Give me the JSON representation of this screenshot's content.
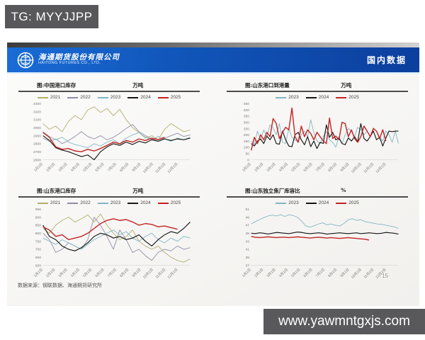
{
  "watermarks": {
    "telegram_tag": "TG: MYYJJPP",
    "site_url": "www.yawmntgxjs.com"
  },
  "header": {
    "company_cn": "海通期货股份有限公司",
    "company_en": "HAITONG FUTURES CO., LTD.",
    "section_label": "国内数据"
  },
  "footer": {
    "source": "数据来源：钢联数据、海通期货研究所",
    "page_number": "15"
  },
  "colors": {
    "y2021": "#b3ae6b",
    "y2022": "#8d8da6",
    "y2023": "#7fb6c2",
    "y2024": "#161616",
    "y2025": "#c32423",
    "header_blue": "#1156ba",
    "watermark_gray": "#59595b"
  },
  "chart_data": [
    {
      "type": "line",
      "title": "图:中国港口库存",
      "unit": "万吨",
      "ylim": [
        2600,
        3300
      ],
      "ytick_step": 100,
      "legend_position": "top",
      "grid": false,
      "x_labels": [
        "1月1日",
        "2月1日",
        "3月1日",
        "4月1日",
        "5月1日",
        "6月1日",
        "7月1日",
        "8月1日",
        "9月1日",
        "10月1日",
        "11月1日",
        "12月1日"
      ],
      "series": [
        {
          "name": "2021",
          "color": "#b3ae6b",
          "values": [
            3050,
            2980,
            3020,
            2950,
            3080,
            3150,
            3100,
            3220,
            3260,
            3190,
            3240,
            3150,
            3230,
            3100,
            3000,
            2940,
            2870,
            2900,
            2850,
            2980,
            3050,
            3000,
            2950,
            2970
          ]
        },
        {
          "name": "2022",
          "color": "#8d8da6",
          "values": [
            2870,
            2830,
            2860,
            2800,
            2840,
            2890,
            2950,
            2890,
            2860,
            2900,
            2850,
            2880,
            2930,
            2990,
            3040,
            2950,
            2900,
            2860,
            2830,
            2870,
            2900,
            2930,
            2890,
            2910
          ]
        },
        {
          "name": "2023",
          "color": "#7fb6c2",
          "values": [
            2950,
            2890,
            2850,
            2880,
            2820,
            2790,
            2770,
            2750,
            2800,
            2770,
            2820,
            2850,
            2800,
            2870,
            2910,
            2940,
            2880,
            2850,
            2890,
            2860,
            2830,
            2870,
            2850,
            2880
          ]
        },
        {
          "name": "2024",
          "color": "#161616",
          "values": [
            2900,
            2840,
            2750,
            2720,
            2700,
            2670,
            2640,
            2660,
            2600,
            2700,
            2760,
            2800,
            2780,
            2820,
            2790,
            2830,
            2810,
            2850,
            2830,
            2860,
            2840,
            2860,
            2850,
            2870
          ]
        },
        {
          "name": "2025",
          "color": "#c32423",
          "values": [
            2940,
            2880,
            2760,
            2730,
            2740,
            2710,
            2700,
            2730,
            2710,
            2740,
            2780,
            2820,
            2800,
            2840,
            2820,
            2860,
            2840,
            2870,
            2850,
            2880
          ]
        }
      ]
    },
    {
      "type": "line",
      "title": "图:山东港口到港量",
      "unit": "万吨",
      "ylim": [
        0,
        450
      ],
      "ytick_step": 50,
      "legend_position": "top",
      "grid": false,
      "x_labels": [
        "1月1日",
        "2月1日",
        "3月1日",
        "4月1日",
        "5月1日",
        "6月1日",
        "7月1日",
        "8月1日",
        "9月1日",
        "10月1日",
        "11月1日",
        "12月1日"
      ],
      "series": [
        {
          "name": "2023",
          "color": "#7fb6c2",
          "values": [
            150,
            120,
            230,
            160,
            240,
            185,
            280,
            255,
            200,
            290,
            140,
            130,
            250,
            180,
            160,
            140,
            200,
            230,
            185,
            320,
            220,
            150,
            130,
            185,
            230,
            160,
            140,
            100,
            185,
            130,
            200,
            250,
            230,
            185,
            260,
            240,
            200,
            230,
            185,
            255,
            230,
            180,
            150,
            230,
            200,
            140,
            230,
            130
          ]
        },
        {
          "name": "2024",
          "color": "#161616",
          "values": [
            130,
            110,
            150,
            165,
            130,
            190,
            160,
            200,
            130,
            125,
            230,
            160,
            110,
            105,
            200,
            220,
            160,
            120,
            185,
            105,
            150,
            90,
            140,
            130,
            280,
            180,
            220,
            160,
            175,
            130,
            120,
            175,
            150,
            185,
            145,
            290,
            170,
            150,
            185,
            230,
            160,
            180,
            110,
            175,
            230,
            225,
            230,
            230
          ]
        },
        {
          "name": "2025",
          "color": "#c32423",
          "values": [
            75,
            180,
            130,
            200,
            160,
            220,
            185,
            330,
            290,
            170,
            220,
            260,
            240,
            415,
            185,
            140,
            270,
            185,
            240,
            210,
            160,
            220,
            185,
            150,
            130,
            335,
            170,
            190,
            160,
            300,
            290,
            185,
            240,
            170,
            140,
            185,
            270,
            230,
            185,
            250,
            230,
            170,
            240,
            150
          ]
        }
      ]
    },
    {
      "type": "line",
      "title": "图:山东港口库存",
      "unit": "万吨",
      "ylim": [
        600,
        950
      ],
      "ytick_step": 50,
      "legend_position": "top",
      "grid": false,
      "x_labels": [
        "1月1日",
        "2月1日",
        "3月1日",
        "4月1日",
        "5月1日",
        "6月1日",
        "7月1日",
        "8月1日",
        "9月1日",
        "10月1日",
        "11月1日",
        "12月1日"
      ],
      "series": [
        {
          "name": "2021",
          "color": "#b3ae6b",
          "values": [
            830,
            800,
            850,
            880,
            900,
            870,
            890,
            915,
            870,
            920,
            850,
            800,
            760,
            780,
            820,
            750,
            720,
            700,
            720,
            680,
            650,
            630,
            620,
            640
          ]
        },
        {
          "name": "2022",
          "color": "#8d8da6",
          "values": [
            800,
            760,
            680,
            700,
            740,
            720,
            700,
            760,
            900,
            850,
            780,
            700,
            820,
            760,
            680,
            700,
            660,
            630,
            680,
            700,
            690,
            720,
            700,
            710
          ]
        },
        {
          "name": "2023",
          "color": "#7fb6c2",
          "values": [
            770,
            750,
            730,
            760,
            740,
            720,
            700,
            730,
            760,
            780,
            800,
            820,
            790,
            810,
            770,
            750,
            780,
            800,
            760,
            740,
            770,
            750,
            780,
            770
          ]
        },
        {
          "name": "2024",
          "color": "#161616",
          "values": [
            850,
            780,
            760,
            720,
            700,
            690,
            710,
            740,
            780,
            800,
            790,
            770,
            780,
            760,
            770,
            790,
            750,
            720,
            760,
            790,
            810,
            800,
            830,
            870
          ]
        },
        {
          "name": "2025",
          "color": "#c32423",
          "values": [
            840,
            820,
            780,
            790,
            760,
            770,
            780,
            800,
            830,
            860,
            880,
            890,
            880,
            885,
            870,
            850,
            860,
            855,
            840,
            845,
            835,
            825
          ]
        }
      ]
    },
    {
      "type": "line",
      "title": "图:山东独立焦厂库容比",
      "unit": "%",
      "ylim": [
        37,
        51
      ],
      "ytick_step": 2,
      "legend_position": "top",
      "grid": false,
      "x_labels": [
        "1月1日",
        "2月1日",
        "3月1日",
        "4月1日",
        "5月1日",
        "6月1日",
        "7月1日",
        "8月1日",
        "9月1日",
        "10月1日",
        "11月1日",
        "12月1日"
      ],
      "series": [
        {
          "name": "2023",
          "color": "#7fb6c2",
          "values": [
            47.3,
            47.9,
            48.4,
            48.9,
            49.3,
            49.5,
            49.3,
            49.6,
            49.2,
            49.6,
            49.4,
            49.0,
            48.0,
            46.8,
            46.5,
            46.9,
            47.3,
            47.6,
            47.1,
            47.3,
            47.0,
            46.8,
            47.4,
            48.3,
            48.6,
            48.2,
            48.4,
            47.9,
            47.7,
            47.5,
            47.3,
            47.2,
            47.0,
            46.8,
            46.6,
            46.2
          ]
        },
        {
          "name": "2024",
          "color": "#161616",
          "values": [
            45.0,
            44.9,
            45.1,
            45.0,
            44.8,
            45.0,
            45.2,
            45.1,
            45.0,
            44.9,
            45.1,
            45.3,
            45.2,
            45.0,
            44.9,
            45.0,
            45.1,
            45.0,
            44.8,
            44.9,
            45.0,
            45.1,
            45.0,
            44.9,
            45.0,
            45.1,
            44.9,
            45.0,
            45.1,
            45.0,
            44.9,
            45.0,
            45.2,
            45.1,
            45.0,
            44.8
          ]
        },
        {
          "name": "2025",
          "color": "#c32423",
          "values": [
            44.2,
            44.0,
            43.9,
            44.0,
            44.1,
            44.0,
            43.9,
            44.0,
            44.0,
            43.9,
            44.0,
            44.1,
            44.0,
            43.9,
            43.8,
            43.9,
            44.0,
            43.9,
            43.8,
            43.9,
            43.8,
            43.7,
            43.8,
            43.9,
            43.8,
            43.7,
            43.6,
            43.5,
            43.3
          ]
        }
      ]
    }
  ]
}
